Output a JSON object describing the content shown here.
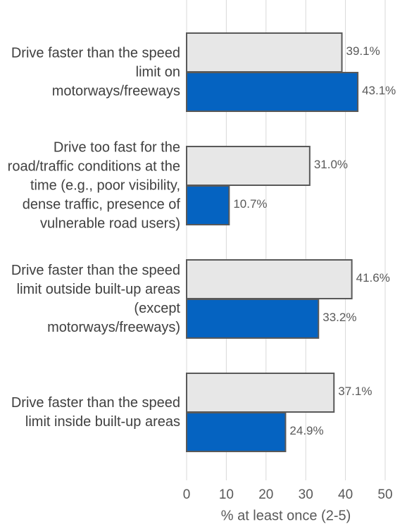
{
  "chart_data": {
    "type": "bar",
    "orientation": "horizontal",
    "x_label": "% at least once (2-5)",
    "categories": [
      "Drive faster than the speed limit on motorways/freeways",
      "Drive too fast for the road/traffic conditions at the time (e.g., poor visibility, dense traffic, presence of vulnerable road users)",
      "Drive faster than the speed limit outside built-up areas (except motorways/freeways)",
      "Drive faster than the speed limit inside built-up areas"
    ],
    "series": [
      {
        "color": "#e7e7e7",
        "values": [
          39.1,
          31.0,
          41.6,
          37.1
        ],
        "value_labels": [
          "39.1%",
          "31.0%",
          "41.6%",
          "37.1%"
        ]
      },
      {
        "color": "#0563c1",
        "values": [
          43.1,
          10.7,
          33.2,
          24.9
        ],
        "value_labels": [
          "43.1%",
          "10.7%",
          "33.2%",
          "24.9%"
        ]
      }
    ],
    "xlim": [
      0,
      50
    ],
    "xticks": [
      0,
      10,
      20,
      30,
      40,
      50
    ],
    "grid": true
  }
}
